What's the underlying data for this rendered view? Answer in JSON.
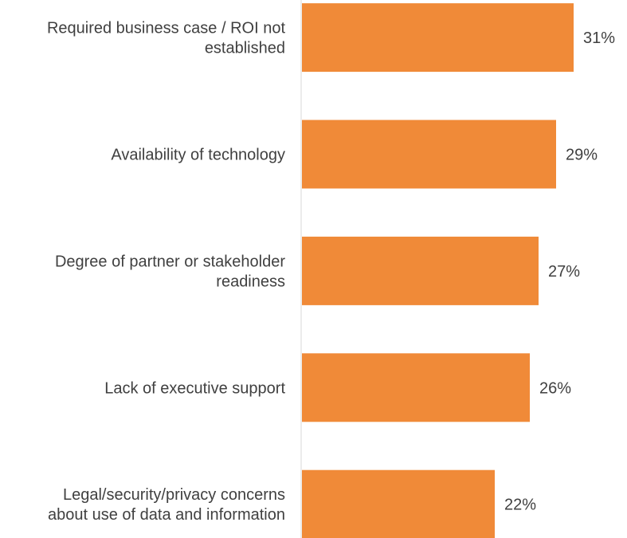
{
  "chart_data": {
    "type": "bar",
    "orientation": "horizontal",
    "categories": [
      [
        "Required business case / ROI not",
        "established"
      ],
      [
        "Availability of technology"
      ],
      [
        "Degree of partner or stakeholder",
        "readiness"
      ],
      [
        "Lack of executive support"
      ],
      [
        "Legal/security/privacy concerns",
        "about use of data and information"
      ]
    ],
    "values": [
      31,
      29,
      27,
      26,
      22
    ],
    "value_labels": [
      "31%",
      "29%",
      "27%",
      "26%",
      "22%"
    ],
    "xlim": [
      0,
      36
    ],
    "grid": false,
    "legend": "none",
    "colors": {
      "bar": "#F08A38",
      "axis": "#D9D9D9",
      "text": "#404040"
    }
  }
}
